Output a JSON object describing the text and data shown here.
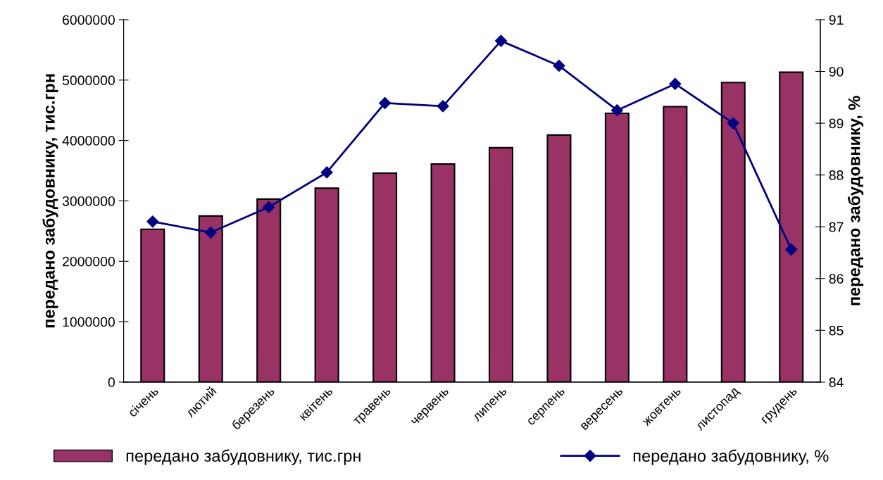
{
  "chart_data": {
    "type": "bar",
    "categories": [
      "січень",
      "лютий",
      "березень",
      "квітень",
      "травень",
      "червень",
      "липень",
      "серпень",
      "вересень",
      "жовтень",
      "листопад",
      "грудень"
    ],
    "ylabel": "передано забудовнику, тис.грн",
    "y2label": "передано забудовнику, %",
    "ylim": [
      0,
      6000000
    ],
    "yticks": [
      0,
      1000000,
      2000000,
      3000000,
      4000000,
      5000000,
      6000000
    ],
    "y2lim": [
      84,
      91
    ],
    "y2ticks": [
      84,
      85,
      86,
      87,
      88,
      89,
      90,
      91
    ],
    "grid": false,
    "legend": "bottom",
    "series": [
      {
        "name": "передано забудовнику, тис.грн",
        "color": "#993366",
        "values": [
          2530000,
          2750000,
          3030000,
          3210000,
          3460000,
          3610000,
          3880000,
          4090000,
          4450000,
          4560000,
          4960000,
          5130000
        ]
      },
      {
        "name": "передано забудовнику, %",
        "type": "line",
        "axis": "y2",
        "color": "#000080",
        "marker": "diamond",
        "line_style": "solid",
        "values": [
          87.1,
          86.89,
          87.38,
          88.05,
          89.39,
          89.33,
          90.59,
          90.11,
          89.25,
          89.76,
          89.0,
          86.56
        ]
      }
    ]
  }
}
